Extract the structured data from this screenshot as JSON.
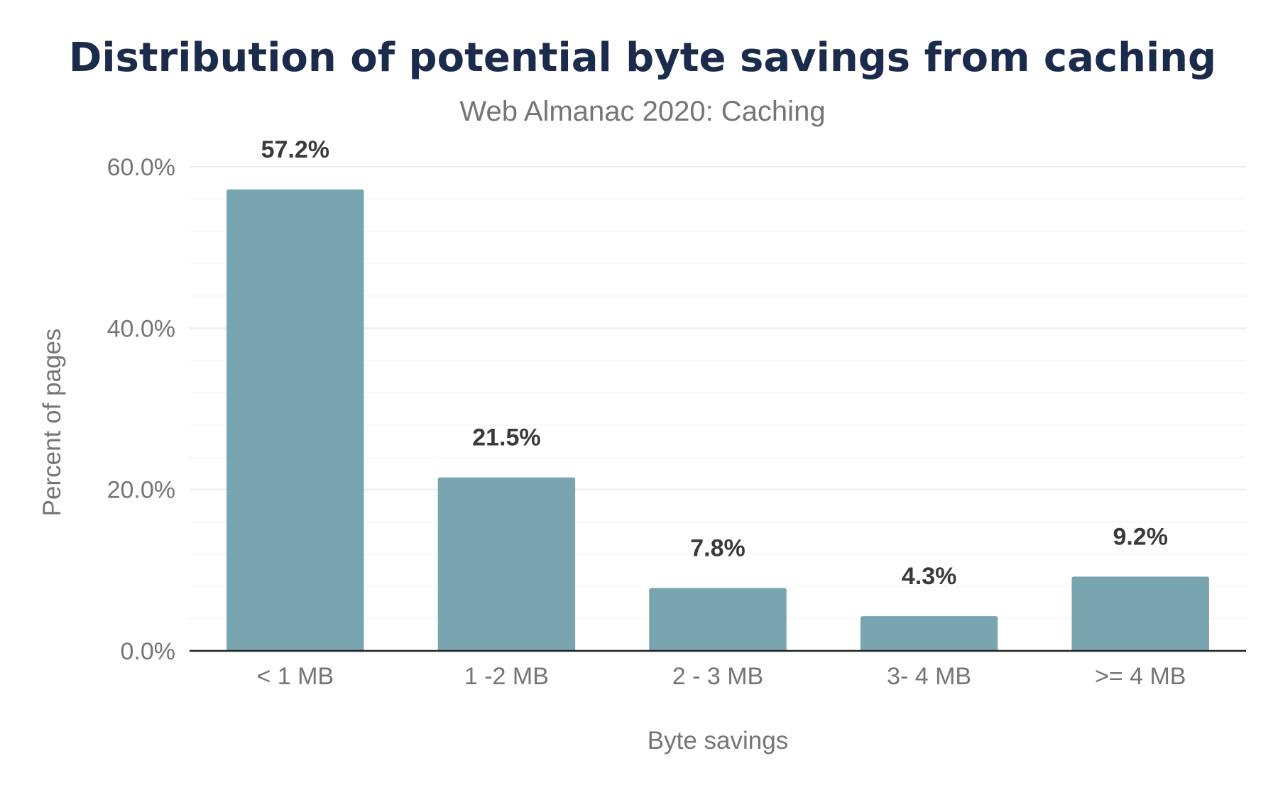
{
  "chart_data": {
    "type": "bar",
    "title": "Distribution of potential byte savings from caching",
    "subtitle": "Web Almanac 2020: Caching",
    "xlabel": "Byte savings",
    "ylabel": "Percent of pages",
    "categories": [
      "< 1 MB",
      "1 -2 MB",
      "2 - 3 MB",
      "3- 4 MB",
      ">= 4 MB"
    ],
    "values": [
      57.2,
      21.5,
      7.8,
      4.3,
      9.2
    ],
    "value_labels": [
      "57.2%",
      "21.5%",
      "7.8%",
      "4.3%",
      "9.2%"
    ],
    "ylim": [
      0,
      60
    ],
    "yticks": [
      0,
      20,
      40,
      60
    ],
    "ytick_labels": [
      "0.0%",
      "20.0%",
      "40.0%",
      "60.0%"
    ],
    "grid": true,
    "legend": "none",
    "bar_color": "#78a5b0"
  }
}
